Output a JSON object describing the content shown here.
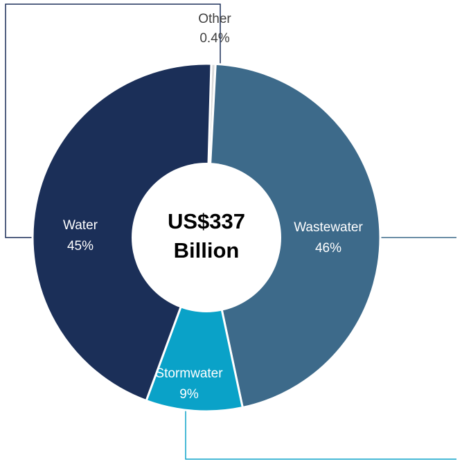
{
  "chart_data": {
    "type": "pie",
    "style": "donut",
    "center_label": [
      "US$337",
      "Billion"
    ],
    "slices": [
      {
        "label": "Other",
        "percent_text": "0.4%",
        "value": 0.4,
        "color": "#d9d9d9"
      },
      {
        "label": "Wastewater",
        "percent_text": "46%",
        "value": 46,
        "color": "#3d6a8a"
      },
      {
        "label": "Stormwater",
        "percent_text": "9%",
        "value": 9,
        "color": "#0aa2c8"
      },
      {
        "label": "Water",
        "percent_text": "45%",
        "value": 45,
        "color": "#1b2f58"
      }
    ]
  },
  "colors": {
    "leader_line_water": "#1b2f58",
    "leader_line_wastewater": "#3d6a8a",
    "leader_line_stormwater": "#0aa2c8",
    "slice_separator": "#ffffff"
  }
}
